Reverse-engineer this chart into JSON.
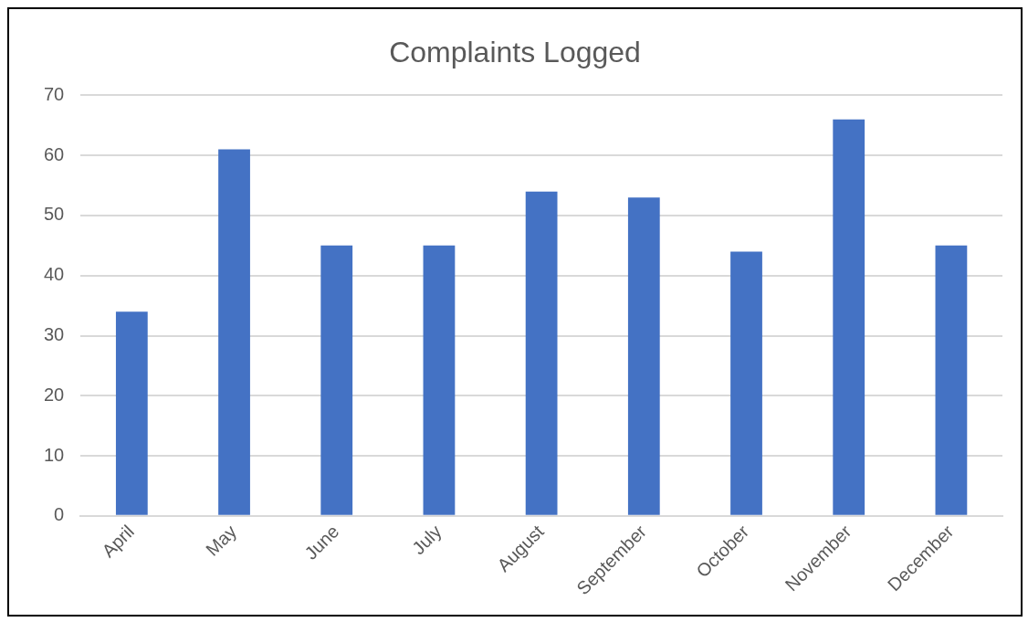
{
  "chart_data": {
    "type": "bar",
    "title": "Complaints Logged",
    "categories": [
      "April",
      "May",
      "June",
      "July",
      "August",
      "September",
      "October",
      "November",
      "December"
    ],
    "values": [
      34,
      61,
      45,
      45,
      54,
      53,
      44,
      66,
      45
    ],
    "color": "#4472c4",
    "ylim": [
      0,
      70
    ],
    "yticks": [
      0,
      10,
      20,
      30,
      40,
      50,
      60,
      70
    ],
    "grid": "y",
    "legend": false
  }
}
